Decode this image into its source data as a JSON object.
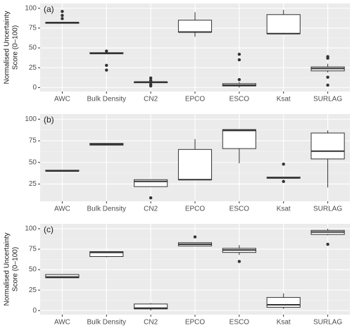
{
  "chart_data": [
    {
      "type": "box",
      "label": "(a)",
      "ylabel": [
        "Normalised Uncertainty",
        "Score (0–100)"
      ],
      "categories": [
        "AWC",
        "Bulk Density",
        "CN2",
        "EPCO",
        "ESCO",
        "Ksat",
        "SURLAG"
      ],
      "boxes": [
        {
          "min": 81,
          "q1": 81,
          "median": 82,
          "q3": 82,
          "max": 83,
          "outliers": [
            87,
            91,
            96
          ]
        },
        {
          "min": 42,
          "q1": 43,
          "median": 43,
          "q3": 44,
          "max": 45,
          "outliers": [
            46,
            28,
            22
          ]
        },
        {
          "min": 6,
          "q1": 6,
          "median": 7,
          "q3": 7,
          "max": 8,
          "outliers": [
            12,
            9,
            4,
            2
          ]
        },
        {
          "min": 64,
          "q1": 70,
          "median": 70,
          "q3": 85,
          "max": 95,
          "outliers": []
        },
        {
          "min": 0,
          "q1": 2,
          "median": 3,
          "q3": 5,
          "max": 7,
          "outliers": [
            42,
            35,
            10
          ]
        },
        {
          "min": 67,
          "q1": 68,
          "median": 68,
          "q3": 92,
          "max": 98,
          "outliers": []
        },
        {
          "min": 19,
          "q1": 21,
          "median": 24,
          "q3": 26,
          "max": 30,
          "outliers": [
            39,
            37,
            13,
            3
          ]
        }
      ],
      "ylim": [
        -5,
        106
      ],
      "yticks": [
        0,
        25,
        50,
        75,
        100
      ],
      "grid": true,
      "box_color": "#ffffff",
      "line_color": "#333333"
    },
    {
      "type": "box",
      "label": "(b)",
      "categories": [
        "AWC",
        "Bulk Density",
        "CN2",
        "EPCO",
        "ESCO",
        "Ksat",
        "SURLAG"
      ],
      "boxes": [
        {
          "min": 40,
          "q1": 40,
          "median": 40,
          "q3": 41,
          "max": 41,
          "outliers": []
        },
        {
          "min": 70,
          "q1": 70,
          "median": 71,
          "q3": 72,
          "max": 72,
          "outliers": []
        },
        {
          "min": 22,
          "q1": 22,
          "median": 28,
          "q3": 30,
          "max": 30,
          "outliers": [
            9
          ]
        },
        {
          "min": 30,
          "q1": 30,
          "median": 30,
          "q3": 65,
          "max": 77,
          "outliers": []
        },
        {
          "min": 49,
          "q1": 66,
          "median": 87,
          "q3": 88,
          "max": 88,
          "outliers": []
        },
        {
          "min": 32,
          "q1": 32,
          "median": 32,
          "q3": 33,
          "max": 33,
          "outliers": [
            48,
            28
          ]
        },
        {
          "min": 21,
          "q1": 54,
          "median": 63,
          "q3": 84,
          "max": 87,
          "outliers": []
        }
      ],
      "ylim": [
        5,
        106
      ],
      "yticks": [
        25,
        50,
        75,
        100
      ],
      "grid": true,
      "box_color": "#ffffff",
      "line_color": "#333333"
    },
    {
      "type": "box",
      "label": "(c)",
      "ylabel": [
        "Normalised Uncertainty",
        "Score (0–100)"
      ],
      "categories": [
        "AWC",
        "Bulk Density",
        "CN2",
        "EPCO",
        "ESCO",
        "Ksat",
        "SURLAG"
      ],
      "boxes": [
        {
          "min": 40,
          "q1": 40,
          "median": 41,
          "q3": 44,
          "max": 44,
          "outliers": []
        },
        {
          "min": 65,
          "q1": 66,
          "median": 71,
          "q3": 72,
          "max": 72,
          "outliers": []
        },
        {
          "min": 0,
          "q1": 2,
          "median": 3,
          "q3": 8,
          "max": 9,
          "outliers": []
        },
        {
          "min": 79,
          "q1": 79,
          "median": 81,
          "q3": 83,
          "max": 83,
          "outliers": [
            90
          ]
        },
        {
          "min": 68,
          "q1": 71,
          "median": 74,
          "q3": 76,
          "max": 80,
          "outliers": [
            60
          ]
        },
        {
          "min": 2,
          "q1": 4,
          "median": 7,
          "q3": 16,
          "max": 21,
          "outliers": []
        },
        {
          "min": 92,
          "q1": 93,
          "median": 96,
          "q3": 98,
          "max": 100,
          "outliers": [
            81
          ]
        }
      ],
      "ylim": [
        -5,
        106
      ],
      "yticks": [
        0,
        25,
        50,
        75,
        100
      ],
      "grid": true,
      "box_color": "#ffffff",
      "line_color": "#333333"
    }
  ]
}
